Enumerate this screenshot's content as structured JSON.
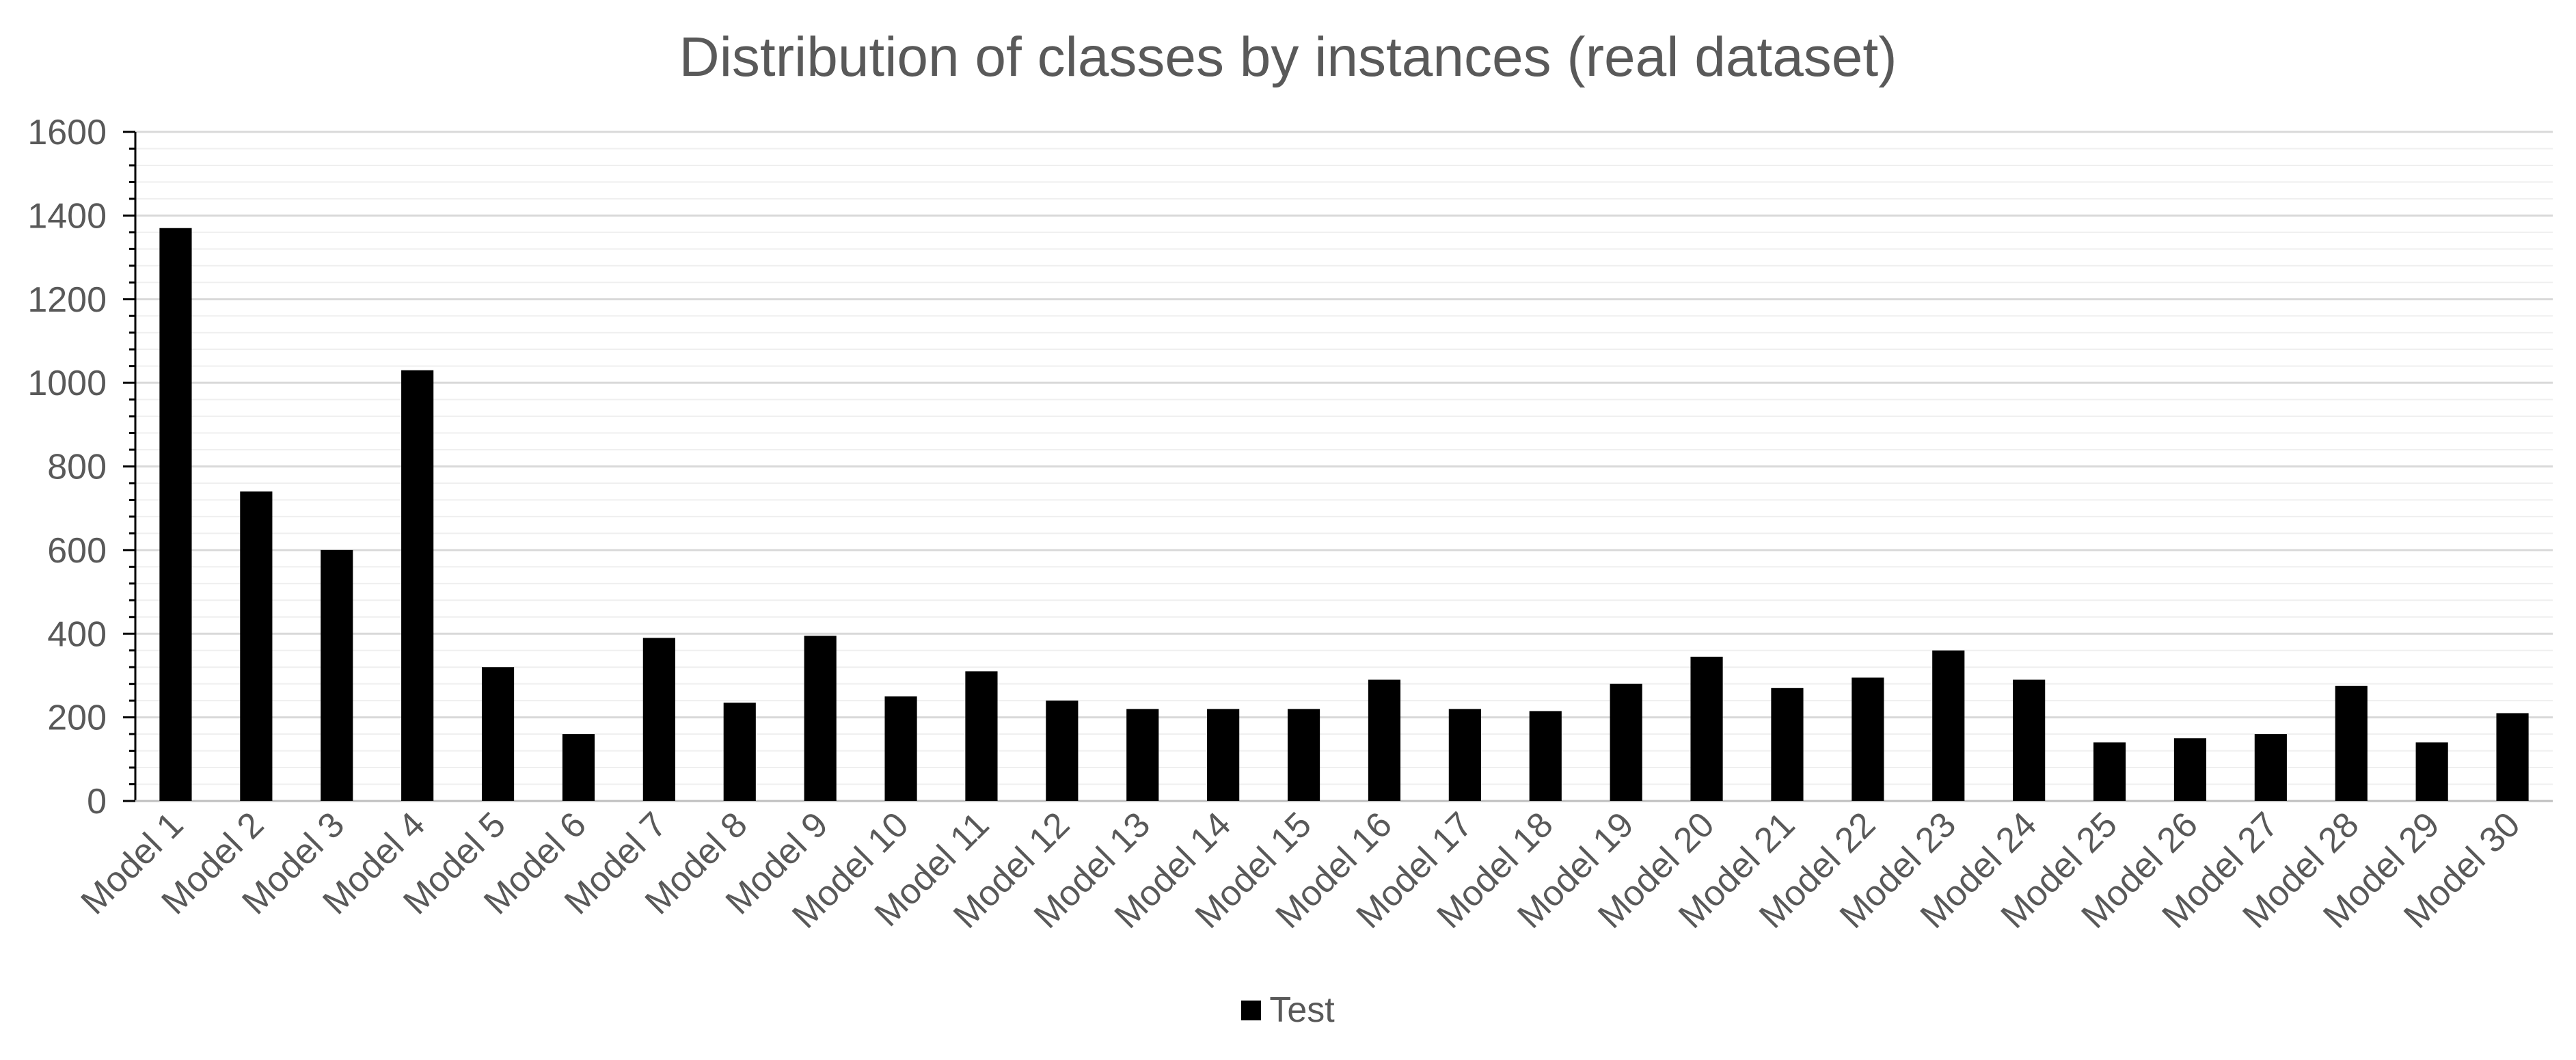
{
  "chart_data": {
    "type": "bar",
    "title": "Distribution of classes by instances (real dataset)",
    "xlabel": "",
    "ylabel": "",
    "ylim": [
      0,
      1600
    ],
    "yticks": [
      0,
      200,
      400,
      600,
      800,
      1000,
      1200,
      1400,
      1600
    ],
    "grid": true,
    "legend_position": "bottom",
    "categories": [
      "Model 1",
      "Model 2",
      "Model 3",
      "Model 4",
      "Model 5",
      "Model 6",
      "Model 7",
      "Model 8",
      "Model 9",
      "Model 10",
      "Model 11",
      "Model 12",
      "Model 13",
      "Model 14",
      "Model 15",
      "Model 16",
      "Model 17",
      "Model 18",
      "Model 19",
      "Model 20",
      "Model 21",
      "Model 22",
      "Model 23",
      "Model 24",
      "Model 25",
      "Model 26",
      "Model 27",
      "Model 28",
      "Model 29",
      "Model 30"
    ],
    "series": [
      {
        "name": "Test",
        "color": "#000000",
        "values": [
          1370,
          740,
          600,
          1030,
          320,
          160,
          390,
          235,
          395,
          250,
          310,
          240,
          220,
          220,
          220,
          290,
          220,
          215,
          280,
          345,
          270,
          295,
          360,
          290,
          140,
          150,
          160,
          275,
          140,
          210
        ]
      }
    ]
  },
  "colors": {
    "bar": "#000000",
    "text": "#595959",
    "major_grid": "#d9d9d9",
    "minor_grid": "#efefef",
    "axis": "#000000"
  }
}
